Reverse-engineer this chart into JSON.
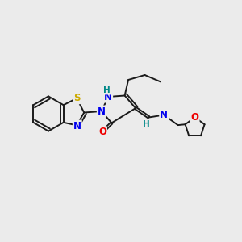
{
  "background_color": "#ebebeb",
  "bond_color": "#1a1a1a",
  "atom_colors": {
    "S": "#ccaa00",
    "N": "#0000ee",
    "O": "#ee0000",
    "H_label": "#008888",
    "C": "#1a1a1a"
  },
  "figsize": [
    3.0,
    3.0
  ],
  "dpi": 100,
  "xlim": [
    0,
    10
  ],
  "ylim": [
    0,
    10
  ]
}
